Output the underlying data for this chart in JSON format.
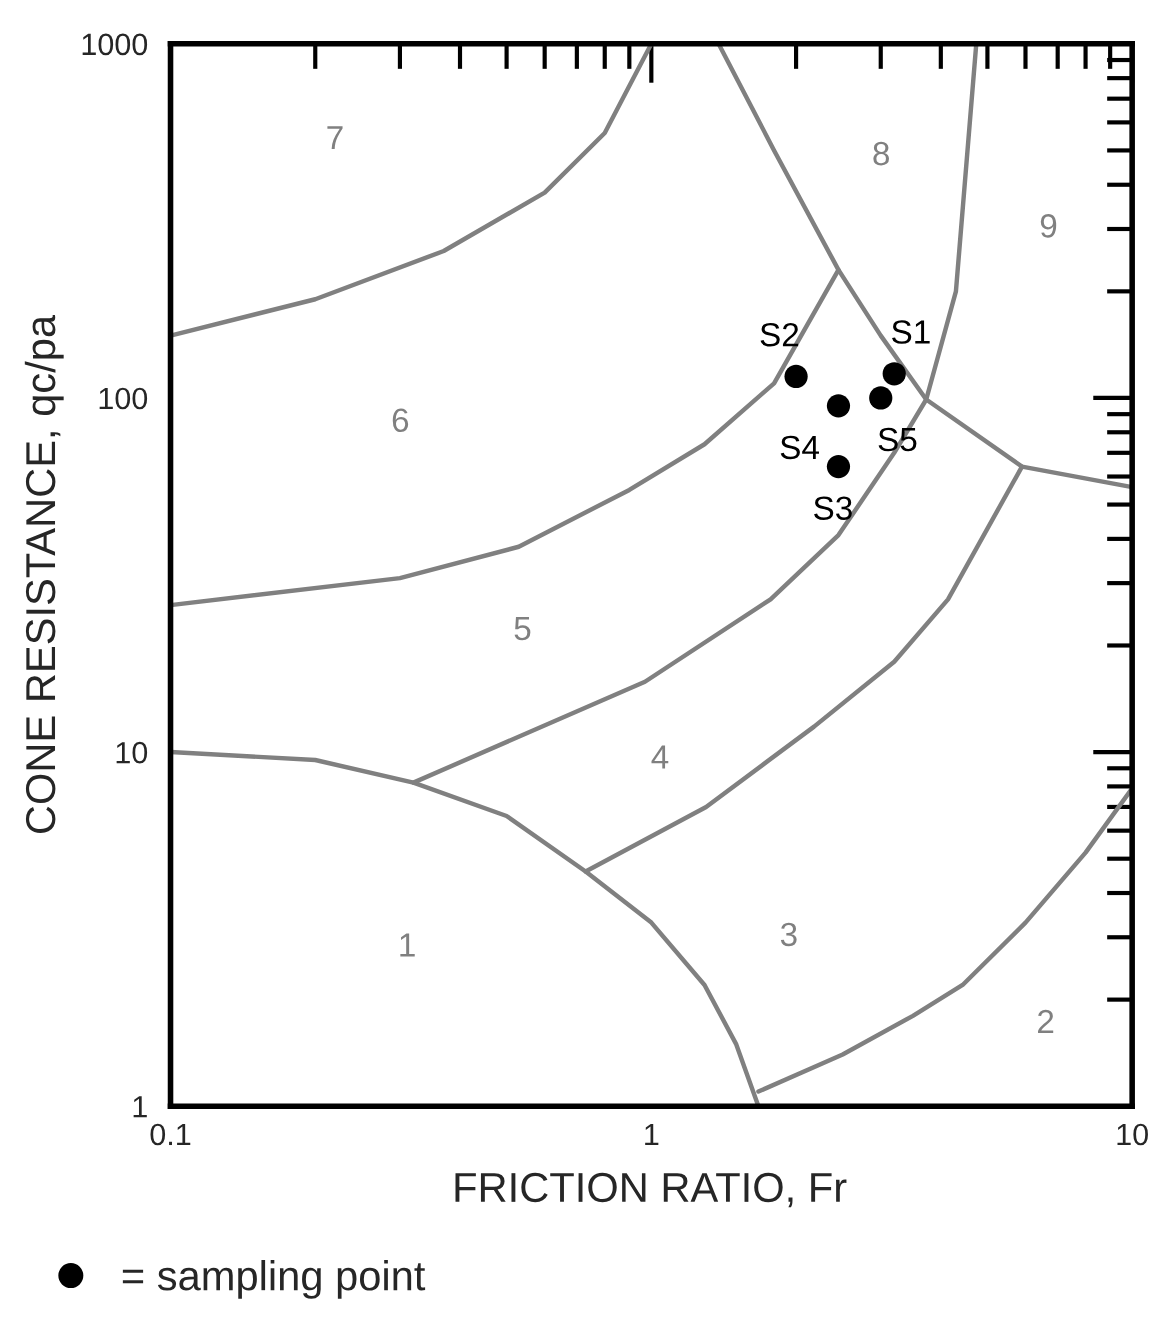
{
  "chart_data": {
    "type": "scatter",
    "xlabel": "FRICTION RATIO, Fr",
    "ylabel": "CONE RESISTANCE, qc/pa",
    "log": "xy",
    "xlim": [
      0.1,
      10
    ],
    "ylim": [
      1,
      1000
    ],
    "xticks": [
      0.1,
      1,
      10
    ],
    "yticks": [
      1,
      10,
      100,
      1000
    ],
    "grid": false,
    "legend": "bottom left",
    "series": [
      {
        "type": "line",
        "color": "#808080",
        "x": [
          0.1,
          0.2,
          0.37,
          0.6,
          0.8,
          1.0
        ],
        "values": [
          150,
          190,
          260,
          380,
          560,
          1000
        ]
      },
      {
        "type": "line",
        "color": "#808080",
        "x": [
          0.1,
          0.3,
          0.53,
          0.9,
          1.29,
          1.8,
          2.45
        ],
        "values": [
          26,
          31,
          38,
          55,
          74,
          110,
          230
        ]
      },
      {
        "type": "line",
        "color": "#808080",
        "x": [
          1.38,
          1.8,
          2.45,
          3.0,
          3.73,
          5.9,
          10
        ],
        "values": [
          1000,
          500,
          230,
          150,
          99,
          64,
          56
        ]
      },
      {
        "type": "line",
        "color": "#808080",
        "x": [
          0.32,
          0.97,
          1.77,
          2.45,
          3.2,
          3.73,
          4.3,
          4.74
        ],
        "values": [
          8.2,
          15.8,
          27,
          41,
          70,
          99,
          200,
          1000
        ]
      },
      {
        "type": "line",
        "color": "#808080",
        "x": [
          0.73,
          1.3,
          2.18,
          3.2,
          4.14,
          5.9
        ],
        "values": [
          4.6,
          7,
          11.8,
          18,
          27,
          64
        ]
      },
      {
        "type": "line",
        "color": "#808080",
        "x": [
          0.1,
          0.2,
          0.32,
          0.5,
          0.73,
          1.0,
          1.29,
          1.5,
          1.67
        ],
        "values": [
          10,
          9.5,
          8.2,
          6.6,
          4.6,
          3.3,
          2.2,
          1.5,
          1
        ]
      },
      {
        "type": "line",
        "color": "#808080",
        "x": [
          1.67,
          2.5,
          3.5,
          4.44,
          6,
          8,
          10
        ],
        "values": [
          1.1,
          1.4,
          1.8,
          2.2,
          3.3,
          5.2,
          7.9
        ]
      },
      {
        "name": "= sampling point",
        "marker": "circle",
        "color": "#000000",
        "x": [
          3.2,
          2.0,
          2.45,
          2.45,
          3.0
        ],
        "values": [
          117,
          115,
          64,
          95,
          100
        ]
      }
    ],
    "annotations": [
      {
        "text": "S1",
        "x": 3.2,
        "y": 117
      },
      {
        "text": "S2",
        "x": 2.0,
        "y": 115
      },
      {
        "text": "S3",
        "x": 2.45,
        "y": 64
      },
      {
        "text": "S4",
        "x": 2.45,
        "y": 95
      },
      {
        "text": "S5",
        "x": 3.0,
        "y": 100
      },
      "1",
      "2",
      "3",
      "4",
      "5",
      "6",
      "7",
      "8",
      "9"
    ]
  }
}
